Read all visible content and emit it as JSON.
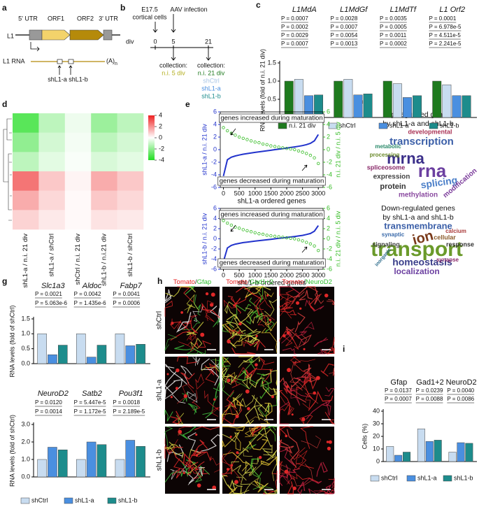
{
  "panel_labels": [
    "a",
    "b",
    "c",
    "d",
    "e",
    "f",
    "g",
    "h",
    "i"
  ],
  "panel_a": {
    "utr5": "5' UTR",
    "orf1": "ORF1",
    "orf2": "ORF2",
    "utr3": "3' UTR",
    "l1": "L1",
    "l1_rna": "L1 RNA",
    "polya": "(A)",
    "polya_sub": "n",
    "sh_a": "shL1-a",
    "sh_b": "shL1-b"
  },
  "panel_b": {
    "age": "E17.5",
    "cells": "cortical cells",
    "infection": "AAV infection",
    "div": "div",
    "t0": "0",
    "t5": "5",
    "t21": "21",
    "collection_1": "collection:",
    "ni5": "n.i. 5 div",
    "collection_2": "collection:",
    "ni21": "n.i. 21 div",
    "shctrl": "shCtrl",
    "sha": "shL1-a",
    "shb": "shL1-b"
  },
  "panel_f": {
    "up_title": [
      "Up-regulated genes",
      "by shL1-a and shL1-b"
    ],
    "up_words": [
      "transcription",
      "mrna",
      "rna",
      "splicing",
      "expression",
      "protein",
      "spliceosome",
      "processing",
      "methylation",
      "modification",
      "developmental",
      "metabolic"
    ],
    "down_title": [
      "Down-regulated genes",
      "by shL1-a and shL1-b"
    ],
    "down_words": [
      "transmembrane",
      "transport",
      "ion",
      "homeostasis",
      "localization",
      "cellular",
      "response",
      "signaling",
      "synaptic",
      "calcium",
      "synapse",
      "inorganic"
    ]
  },
  "panel_h": {
    "columns": [
      [
        "Tomato",
        "/",
        "Gfap"
      ],
      [
        "Tomato",
        "/",
        "Gad1+2"
      ],
      [
        "Tomato",
        "/",
        "NeuroD2"
      ]
    ],
    "rows": [
      "shCtrl",
      "shL1-a",
      "shL1-b"
    ]
  },
  "chart_data": [
    {
      "type": "bar",
      "ylabel": "RNA levels (fold of n.i. 21 div)",
      "italic_categories": true,
      "categories": [
        "L1MdA",
        "L1MdGf",
        "L1MdTf",
        "L1 Orf2"
      ],
      "series": [
        {
          "name": "n.i. 21 div",
          "color": "#1e7a1e",
          "values": [
            1.0,
            1.0,
            1.0,
            1.0
          ]
        },
        {
          "name": "shCtrl",
          "color": "#c8dcf0",
          "values": [
            1.05,
            1.05,
            0.93,
            0.9
          ]
        },
        {
          "name": "shL1-a",
          "color": "#4a8fe0",
          "values": [
            0.6,
            0.62,
            0.55,
            0.6
          ]
        },
        {
          "name": "shL1-b",
          "color": "#1d8c8c",
          "values": [
            0.62,
            0.65,
            0.6,
            0.6
          ]
        }
      ],
      "p_values": [
        [
          "P = 0.0007",
          "P = 0.0002",
          "P = 0.0029",
          "P = 0.0007"
        ],
        [
          "P = 0.0028",
          "P = 0.0007",
          "P = 0.0054",
          "P = 0.0013"
        ],
        [
          "P = 0.0035",
          "P = 0.0005",
          "P = 0.0011",
          "P = 0.0002"
        ],
        [
          "P = 0.0001",
          "P = 6.978e-5",
          "P = 4.511e-5",
          "P = 2.241e-5"
        ]
      ],
      "ylim": [
        0,
        1.5
      ],
      "yticks": [
        {
          "value": 0,
          "label": "0.0"
        },
        {
          "value": 0.5,
          "label": "0.5"
        },
        {
          "value": 1,
          "label": "1.0"
        },
        {
          "value": 1.5,
          "label": "1.5"
        }
      ],
      "legend": "bottom"
    },
    {
      "type": "heatmap",
      "columns": [
        "shL1-a / n.i. 21 div",
        "shL1-a / shCtrl",
        "shCtrl / n.i. 21 div",
        "shL1-b / n.i.21 div",
        "shL1-b / shCtrl"
      ],
      "values": [
        [
          -3,
          -1.2,
          -0.3,
          -1.8,
          -1.2
        ],
        [
          -2,
          -0.8,
          -0.2,
          -1.2,
          -0.8
        ],
        [
          -1.2,
          -0.5,
          -0.1,
          -0.7,
          -0.5
        ],
        [
          2.5,
          1,
          0.2,
          1.5,
          1
        ],
        [
          1.5,
          0.7,
          0.1,
          1,
          0.7
        ],
        [
          0.8,
          0.4,
          0.1,
          0.5,
          0.4
        ]
      ],
      "clim": [
        -4,
        4
      ],
      "colorbar_ticks": [
        4,
        2,
        0,
        -2,
        -4
      ]
    },
    {
      "type": "scatter",
      "ylabel": "shL1-a / n.i. 21 div",
      "y2label": "n.i. 21 div / n.i. 5 div",
      "xlabel": "shL1-a ordered genes",
      "annotations": [
        "genes increased during maturation",
        "genes decreased during maturation"
      ],
      "x": [
        0,
        125,
        250,
        375,
        500,
        625,
        750,
        875,
        1000,
        1125,
        1250,
        1375,
        1500,
        1625,
        1750,
        1875,
        2000,
        2125,
        2250,
        2375,
        2500,
        2625,
        2750,
        2875,
        3000
      ],
      "series": [
        {
          "color": "#2233cc",
          "style": "line",
          "values": [
            -4.2,
            -1.6,
            -1.2,
            -1,
            -0.85,
            -0.72,
            -0.62,
            -0.52,
            -0.43,
            -0.35,
            -0.27,
            -0.18,
            -0.1,
            0,
            0.08,
            0.16,
            0.25,
            0.34,
            0.43,
            0.53,
            0.65,
            0.8,
            1.0,
            1.4,
            2.4
          ]
        },
        {
          "color": "#33bb22",
          "style": "points",
          "axis": "y2",
          "values": [
            3.5,
            3,
            2.6,
            2.3,
            2,
            1.8,
            1.6,
            1.4,
            1.2,
            1.1,
            0.9,
            0.8,
            0.6,
            0.5,
            0.4,
            0.3,
            0.2,
            0.1,
            0,
            -0.2,
            -0.4,
            -0.6,
            -0.9,
            -1.3,
            -2.2
          ]
        }
      ],
      "xlim": [
        -100,
        3150
      ],
      "xticks": [
        0,
        500,
        1000,
        1500,
        2000,
        2500,
        3000
      ],
      "ylim": [
        -6,
        6
      ],
      "yticks": [
        6,
        4,
        2,
        0,
        -2,
        -4,
        -6
      ],
      "y2lim": [
        -6,
        6
      ],
      "y2ticks": [
        6,
        4,
        2,
        0,
        -2,
        -4,
        -6
      ]
    },
    {
      "type": "scatter",
      "ylabel": "shL1-b / n.i. 21 div",
      "y2label": "n.i. 21 div / n.i. 5 div",
      "xlabel": "shL1-b ordered genes",
      "annotations": [
        "genes increased during maturation",
        "genes decreased during maturation"
      ],
      "x": [
        0,
        125,
        250,
        375,
        500,
        625,
        750,
        875,
        1000,
        1125,
        1250,
        1375,
        1500,
        1625,
        1750,
        1875,
        2000,
        2125,
        2250,
        2375,
        2500,
        2625,
        2750,
        2875,
        3000
      ],
      "series": [
        {
          "color": "#2233cc",
          "style": "line",
          "values": [
            -4.5,
            -1.8,
            -1.3,
            -1.05,
            -0.9,
            -0.75,
            -0.65,
            -0.55,
            -0.45,
            -0.36,
            -0.28,
            -0.19,
            -0.1,
            0,
            0.09,
            0.18,
            0.27,
            0.36,
            0.46,
            0.56,
            0.68,
            0.85,
            1.05,
            1.5,
            2.6
          ]
        },
        {
          "color": "#33bb22",
          "style": "points",
          "axis": "y2",
          "values": [
            3.6,
            3.1,
            2.7,
            2.3,
            2.1,
            1.8,
            1.6,
            1.4,
            1.2,
            1,
            0.9,
            0.7,
            0.6,
            0.5,
            0.4,
            0.3,
            0.2,
            0.1,
            0,
            -0.2,
            -0.4,
            -0.7,
            -1,
            -1.4,
            -2.3
          ]
        }
      ],
      "xlim": [
        -100,
        3150
      ],
      "xticks": [
        0,
        500,
        1000,
        1500,
        2000,
        2500,
        3000
      ],
      "ylim": [
        -6,
        6
      ],
      "yticks": [
        6,
        4,
        2,
        0,
        -2,
        -4,
        -6
      ],
      "y2lim": [
        -6,
        6
      ],
      "y2ticks": [
        6,
        4,
        2,
        0,
        -2,
        -4,
        -6
      ]
    },
    {
      "type": "bar",
      "ylabel": "RNA levels (fold of shCtrl)",
      "italic_categories": true,
      "categories": [
        "Slc1a3",
        "Aldoc",
        "Fabp7"
      ],
      "series": [
        {
          "name": "shCtrl",
          "color": "#c8dcf0",
          "values": [
            1.0,
            1.0,
            1.0
          ]
        },
        {
          "name": "shL1-a",
          "color": "#4a8fe0",
          "values": [
            0.3,
            0.22,
            0.6
          ]
        },
        {
          "name": "shL1-b",
          "color": "#1d8c8c",
          "values": [
            0.62,
            0.62,
            0.65
          ]
        }
      ],
      "p_values": [
        [
          "P = 0.0021",
          "P = 5.063e-6"
        ],
        [
          "P = 0.0042",
          "P = 1.435e-6"
        ],
        [
          "P = 0.0041",
          "P = 0.0006"
        ]
      ],
      "ylim": [
        0,
        1.5
      ],
      "yticks": [
        {
          "value": 0,
          "label": "0.0"
        },
        {
          "value": 0.5,
          "label": "0.5"
        },
        {
          "value": 1,
          "label": "1.0"
        },
        {
          "value": 1.5,
          "label": "1.5"
        }
      ]
    },
    {
      "type": "bar",
      "ylabel": "RNA levels (fold of shCtrl)",
      "italic_categories": true,
      "categories": [
        "NeuroD2",
        "Satb2",
        "Pou3f1"
      ],
      "series": [
        {
          "name": "shCtrl",
          "color": "#c8dcf0",
          "values": [
            1.0,
            1.0,
            1.0
          ]
        },
        {
          "name": "shL1-a",
          "color": "#4a8fe0",
          "values": [
            1.7,
            2.0,
            2.1
          ]
        },
        {
          "name": "shL1-b",
          "color": "#1d8c8c",
          "values": [
            1.55,
            1.85,
            1.75
          ]
        }
      ],
      "p_values": [
        [
          "P = 0.0120",
          "P = 0.0014"
        ],
        [
          "P = 5.447e-5",
          "P = 1.172e-5"
        ],
        [
          "P = 0.0018",
          "P = 2.189e-5"
        ]
      ],
      "ylim": [
        0,
        3
      ],
      "yticks": [
        {
          "value": 0,
          "label": "0.0"
        },
        {
          "value": 1,
          "label": "1.0"
        },
        {
          "value": 2,
          "label": "2.0"
        },
        {
          "value": 3,
          "label": "3.0"
        }
      ],
      "legend": "bottom"
    },
    {
      "type": "bar",
      "ylabel": "Cells (%)",
      "italic_categories": false,
      "categories": [
        "Gfap",
        "Gad1+2",
        "NeuroD2"
      ],
      "series": [
        {
          "name": "shCtrl",
          "color": "#c8dcf0",
          "values": [
            12,
            26,
            7.5
          ]
        },
        {
          "name": "shL1-a",
          "color": "#4a8fe0",
          "values": [
            5,
            16,
            15
          ]
        },
        {
          "name": "shL1-b",
          "color": "#1d8c8c",
          "values": [
            7.5,
            17,
            14.5
          ]
        }
      ],
      "p_values": [
        [
          "P = 0.0137",
          "P = 0.0007"
        ],
        [
          "P = 0.0239",
          "P = 0.0088"
        ],
        [
          "P = 0.0040",
          "P = 0.0086"
        ]
      ],
      "ylim": [
        0,
        40
      ],
      "yticks": [
        0,
        10,
        20,
        30,
        40
      ],
      "legend": "bottom"
    }
  ]
}
